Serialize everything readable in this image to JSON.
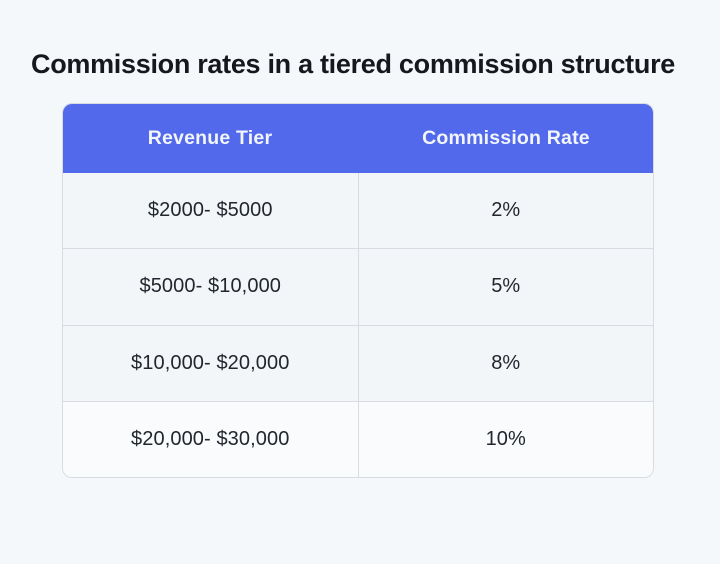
{
  "title": "Commission rates in a tiered commission structure",
  "chart_data": {
    "type": "table",
    "title": "Commission rates in a tiered commission structure",
    "columns": [
      "Revenue Tier",
      "Commission Rate"
    ],
    "rows": [
      [
        "$2000- $5000",
        "2%"
      ],
      [
        "$5000- $10,000",
        "5%"
      ],
      [
        "$10,000- $20,000",
        "8%"
      ],
      [
        "$20,000- $30,000",
        "10%"
      ]
    ],
    "layout": {
      "header_position": "top",
      "columns_count": 2,
      "rows_count": 4,
      "grid": true
    },
    "colors": {
      "header_bg": "#5169ea",
      "header_text": "#f2f5fc",
      "row_bg": "#f3f6f9",
      "cell_text": "#22262d",
      "divider": "#d8dce2",
      "page_bg": "#f5f8fb",
      "title_text": "#15181d"
    }
  }
}
